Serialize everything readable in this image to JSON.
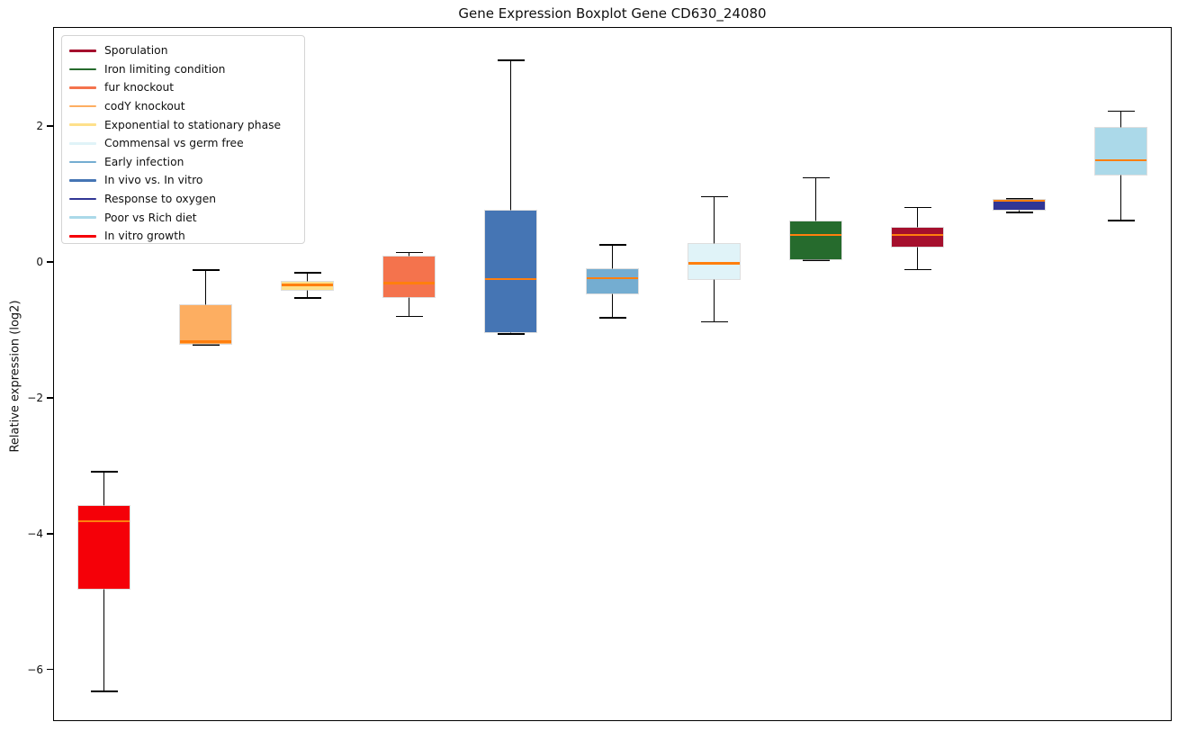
{
  "chart_data": {
    "type": "boxplot",
    "title": "Gene Expression Boxplot Gene CD630_24080",
    "ylabel": "Relative expression (log2)",
    "xlabel": "",
    "ylim": [
      -6.76,
      3.46
    ],
    "xlim": [
      0.5,
      11.5
    ],
    "yticks": [
      2,
      0,
      -2,
      -4,
      -6
    ],
    "ytick_labels": [
      "2",
      "0",
      "−2",
      "−4",
      "−6"
    ],
    "xtick_labels": [],
    "grid": false,
    "legend_position": "upper-left",
    "median_color": "#ff7f0e",
    "whisker_color": "#000000",
    "legend": [
      {
        "label": "Sporulation",
        "color": "#a50f2d"
      },
      {
        "label": "Iron limiting condition",
        "color": "#266b2d"
      },
      {
        "label": "fur knockout",
        "color": "#f4734d"
      },
      {
        "label": "codY knockout",
        "color": "#fdae61"
      },
      {
        "label": "Exponential to stationary phase",
        "color": "#fee08b"
      },
      {
        "label": "Commensal vs germ free",
        "color": "#e0f3f8"
      },
      {
        "label": "Early infection",
        "color": "#74add1"
      },
      {
        "label": "In vivo vs. In vitro",
        "color": "#4575b4"
      },
      {
        "label": "Response to oxygen",
        "color": "#313695"
      },
      {
        "label": "Poor vs Rich diet",
        "color": "#abd9e9"
      },
      {
        "label": "In vitro growth",
        "color": "#f50008"
      }
    ],
    "boxes": [
      {
        "label": "In vitro growth",
        "color": "#f50008",
        "position": 1,
        "whisker_low": -6.32,
        "q1": -4.81,
        "median": -3.82,
        "q3": -3.59,
        "whisker_high": -3.09
      },
      {
        "label": "codY knockout",
        "color": "#fdae61",
        "position": 2,
        "whisker_low": -1.22,
        "q1": -1.2,
        "median": -1.17,
        "q3": -0.64,
        "whisker_high": -0.12
      },
      {
        "label": "Exponential to stationary phase",
        "color": "#fee08b",
        "position": 3,
        "whisker_low": -0.53,
        "q1": -0.41,
        "median": -0.34,
        "q3": -0.29,
        "whisker_high": -0.16
      },
      {
        "label": "fur knockout",
        "color": "#f4734d",
        "position": 4,
        "whisker_low": -0.8,
        "q1": -0.52,
        "median": -0.31,
        "q3": 0.08,
        "whisker_high": 0.14
      },
      {
        "label": "In vivo vs. In vitro",
        "color": "#4575b4",
        "position": 5,
        "whisker_low": -1.06,
        "q1": -1.04,
        "median": -0.25,
        "q3": 0.75,
        "whisker_high": 2.97
      },
      {
        "label": "Early infection",
        "color": "#74add1",
        "position": 6,
        "whisker_low": -0.82,
        "q1": -0.46,
        "median": -0.24,
        "q3": -0.1,
        "whisker_high": 0.25
      },
      {
        "label": "Commensal vs germ free",
        "color": "#e0f3f8",
        "position": 7,
        "whisker_low": -0.88,
        "q1": -0.25,
        "median": -0.02,
        "q3": 0.27,
        "whisker_high": 0.96
      },
      {
        "label": "Iron limiting condition",
        "color": "#266b2d",
        "position": 8,
        "whisker_low": 0.03,
        "q1": 0.04,
        "median": 0.4,
        "q3": 0.6,
        "whisker_high": 1.24
      },
      {
        "label": "Sporulation",
        "color": "#a50f2d",
        "position": 9,
        "whisker_low": -0.11,
        "q1": 0.23,
        "median": 0.4,
        "q3": 0.5,
        "whisker_high": 0.8
      },
      {
        "label": "Response to oxygen",
        "color": "#313695",
        "position": 10,
        "whisker_low": 0.73,
        "q1": 0.77,
        "median": 0.9,
        "q3": 0.92,
        "whisker_high": 0.93
      },
      {
        "label": "Poor vs Rich diet",
        "color": "#abd9e9",
        "position": 11,
        "whisker_low": 0.61,
        "q1": 1.28,
        "median": 1.5,
        "q3": 1.97,
        "whisker_high": 2.22
      }
    ]
  }
}
